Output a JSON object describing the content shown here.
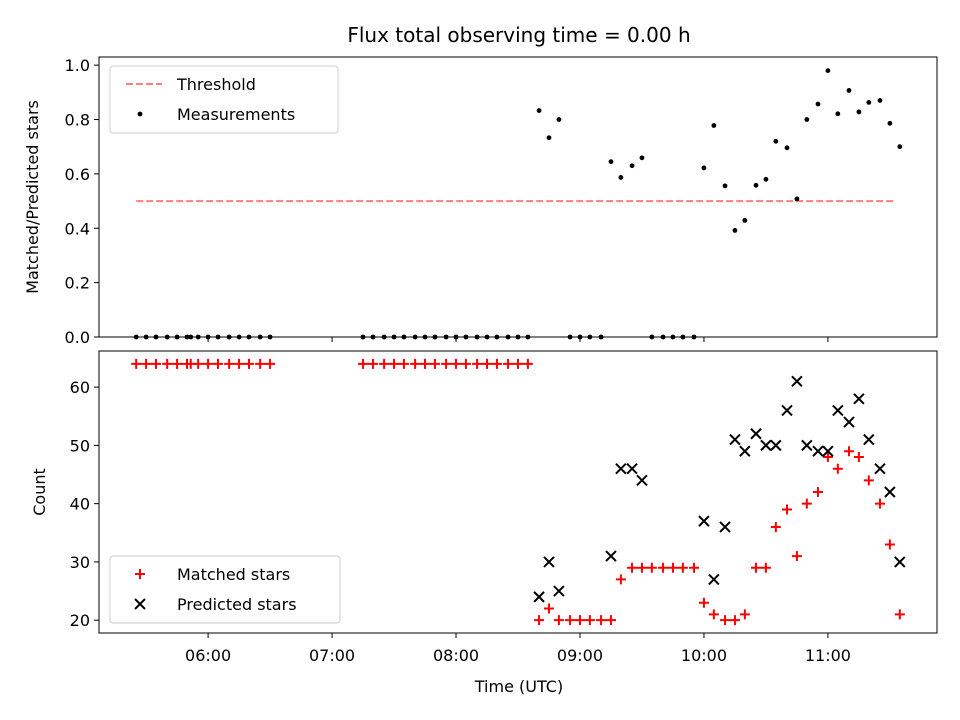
{
  "chart_data": {
    "title": "Flux total observing time = 0.00 h",
    "xlabel": "Time (UTC)",
    "x_ticks": [
      6,
      7,
      8,
      9,
      10,
      11
    ],
    "x_tick_labels": [
      "06:00",
      "07:00",
      "08:00",
      "09:00",
      "10:00",
      "11:00"
    ],
    "xlim": [
      5.12,
      11.88
    ],
    "panels": [
      {
        "type": "scatter",
        "ylabel": "Matched/Predicted stars",
        "ylim": [
          0.0,
          1.03
        ],
        "y_ticks": [
          0.0,
          0.2,
          0.4,
          0.6,
          0.8,
          1.0
        ],
        "y_tick_labels": [
          "0.0",
          "0.2",
          "0.4",
          "0.6",
          "0.8",
          "1.0"
        ],
        "legend_position": "upper-left",
        "series": [
          {
            "name": "Threshold",
            "type": "line",
            "style": "dashed",
            "color": "#ff7f7f",
            "x": [
              5.42,
              11.55
            ],
            "y": [
              0.5,
              0.5
            ]
          },
          {
            "name": "Measurements",
            "type": "scatter",
            "marker": "dot",
            "color": "#000000",
            "x": [
              5.42,
              5.5,
              5.58,
              5.67,
              5.75,
              5.83,
              5.86,
              5.92,
              6.0,
              6.08,
              6.17,
              6.25,
              6.33,
              6.42,
              6.5,
              7.25,
              7.33,
              7.42,
              7.5,
              7.58,
              7.67,
              7.75,
              7.83,
              7.92,
              8.0,
              8.08,
              8.17,
              8.25,
              8.33,
              8.42,
              8.5,
              8.58,
              8.67,
              8.75,
              8.83,
              8.92,
              9.0,
              9.08,
              9.17,
              9.25,
              9.33,
              9.42,
              9.5,
              9.58,
              9.67,
              9.75,
              9.83,
              9.92,
              10.0,
              10.08,
              10.17,
              10.25,
              10.33,
              10.42,
              10.5,
              10.58,
              10.67,
              10.75,
              10.83,
              10.92,
              11.0,
              11.08,
              11.17,
              11.25,
              11.33,
              11.42,
              11.5,
              11.58
            ],
            "y": [
              0,
              0,
              0,
              0,
              0,
              0,
              0,
              0,
              0,
              0,
              0,
              0,
              0,
              0,
              0,
              0,
              0,
              0,
              0,
              0,
              0,
              0,
              0,
              0,
              0,
              0,
              0,
              0,
              0,
              0,
              0,
              0,
              0.833,
              0.733,
              0.8,
              0,
              0,
              0,
              0,
              0.645,
              0.587,
              0.63,
              0.659,
              0,
              0,
              0,
              0,
              0,
              0.622,
              0.778,
              0.556,
              0.392,
              0.429,
              0.558,
              0.58,
              0.72,
              0.696,
              0.508,
              0.8,
              0.857,
              0.98,
              0.821,
              0.907,
              0.828,
              0.863,
              0.87,
              0.786,
              0.7
            ]
          }
        ]
      },
      {
        "type": "scatter",
        "ylabel": "Count",
        "ylim": [
          17.8,
          66.2
        ],
        "y_ticks": [
          20,
          30,
          40,
          50,
          60
        ],
        "y_tick_labels": [
          "20",
          "30",
          "40",
          "50",
          "60"
        ],
        "legend_position": "lower-left",
        "series": [
          {
            "name": "Matched stars",
            "type": "scatter",
            "marker": "plus",
            "color": "#ff0000",
            "x": [
              5.42,
              5.5,
              5.58,
              5.67,
              5.75,
              5.83,
              5.86,
              5.92,
              6.0,
              6.08,
              6.17,
              6.25,
              6.33,
              6.42,
              6.5,
              7.25,
              7.33,
              7.42,
              7.5,
              7.58,
              7.67,
              7.75,
              7.83,
              7.92,
              8.0,
              8.08,
              8.17,
              8.25,
              8.33,
              8.42,
              8.5,
              8.58,
              8.67,
              8.75,
              8.83,
              8.92,
              9.0,
              9.08,
              9.17,
              9.25,
              9.33,
              9.42,
              9.5,
              9.58,
              9.67,
              9.75,
              9.83,
              9.92,
              10.0,
              10.08,
              10.17,
              10.25,
              10.33,
              10.42,
              10.5,
              10.58,
              10.67,
              10.75,
              10.83,
              10.92,
              11.0,
              11.08,
              11.17,
              11.25,
              11.33,
              11.42,
              11.5,
              11.58
            ],
            "y": [
              64,
              64,
              64,
              64,
              64,
              64,
              64,
              64,
              64,
              64,
              64,
              64,
              64,
              64,
              64,
              64,
              64,
              64,
              64,
              64,
              64,
              64,
              64,
              64,
              64,
              64,
              64,
              64,
              64,
              64,
              64,
              64,
              20,
              22,
              20,
              20,
              20,
              20,
              20,
              20,
              27,
              29,
              29,
              29,
              29,
              29,
              29,
              29,
              23,
              21,
              20,
              20,
              21,
              29,
              29,
              36,
              39,
              31,
              40,
              42,
              48,
              46,
              49,
              48,
              44,
              40,
              33,
              21
            ]
          },
          {
            "name": "Predicted stars",
            "type": "scatter",
            "marker": "x",
            "color": "#000000",
            "x": [
              8.67,
              8.75,
              8.83,
              9.25,
              9.33,
              9.42,
              9.5,
              10.0,
              10.08,
              10.17,
              10.25,
              10.33,
              10.42,
              10.5,
              10.58,
              10.67,
              10.75,
              10.83,
              10.92,
              11.0,
              11.08,
              11.17,
              11.25,
              11.33,
              11.42,
              11.5,
              11.58
            ],
            "y": [
              24,
              30,
              25,
              31,
              46,
              46,
              44,
              37,
              27,
              36,
              51,
              49,
              52,
              50,
              50,
              56,
              61,
              50,
              49,
              49,
              56,
              54,
              58,
              51,
              46,
              42,
              30
            ]
          }
        ]
      }
    ]
  }
}
